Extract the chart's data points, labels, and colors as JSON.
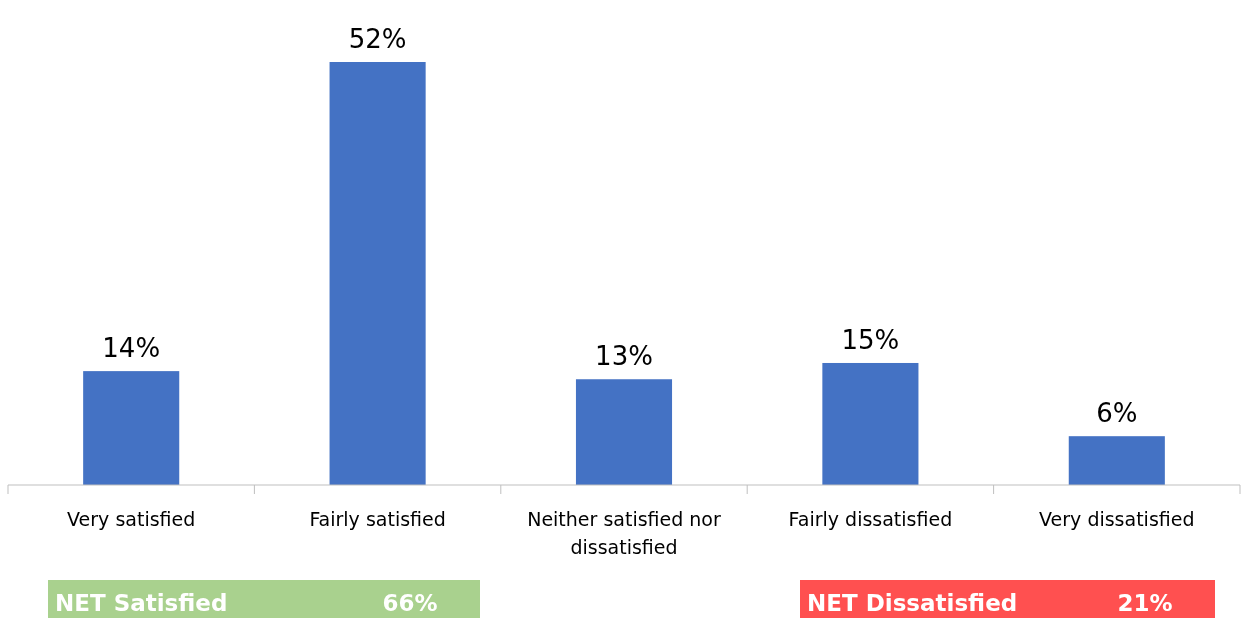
{
  "chart_data": {
    "type": "bar",
    "categories": [
      "Very satisfied",
      "Fairly satisfied",
      "Neither satisfied nor dissatisfied",
      "Fairly dissatisfied",
      "Very dissatisfied"
    ],
    "values": [
      14,
      52,
      13,
      15,
      6
    ],
    "value_labels": [
      "14%",
      "52%",
      "13%",
      "15%",
      "6%"
    ],
    "color": "#4472c4",
    "annotations": [
      "NET Satisfied",
      "66%",
      "NET Dissatisfied",
      "21%"
    ]
  }
}
